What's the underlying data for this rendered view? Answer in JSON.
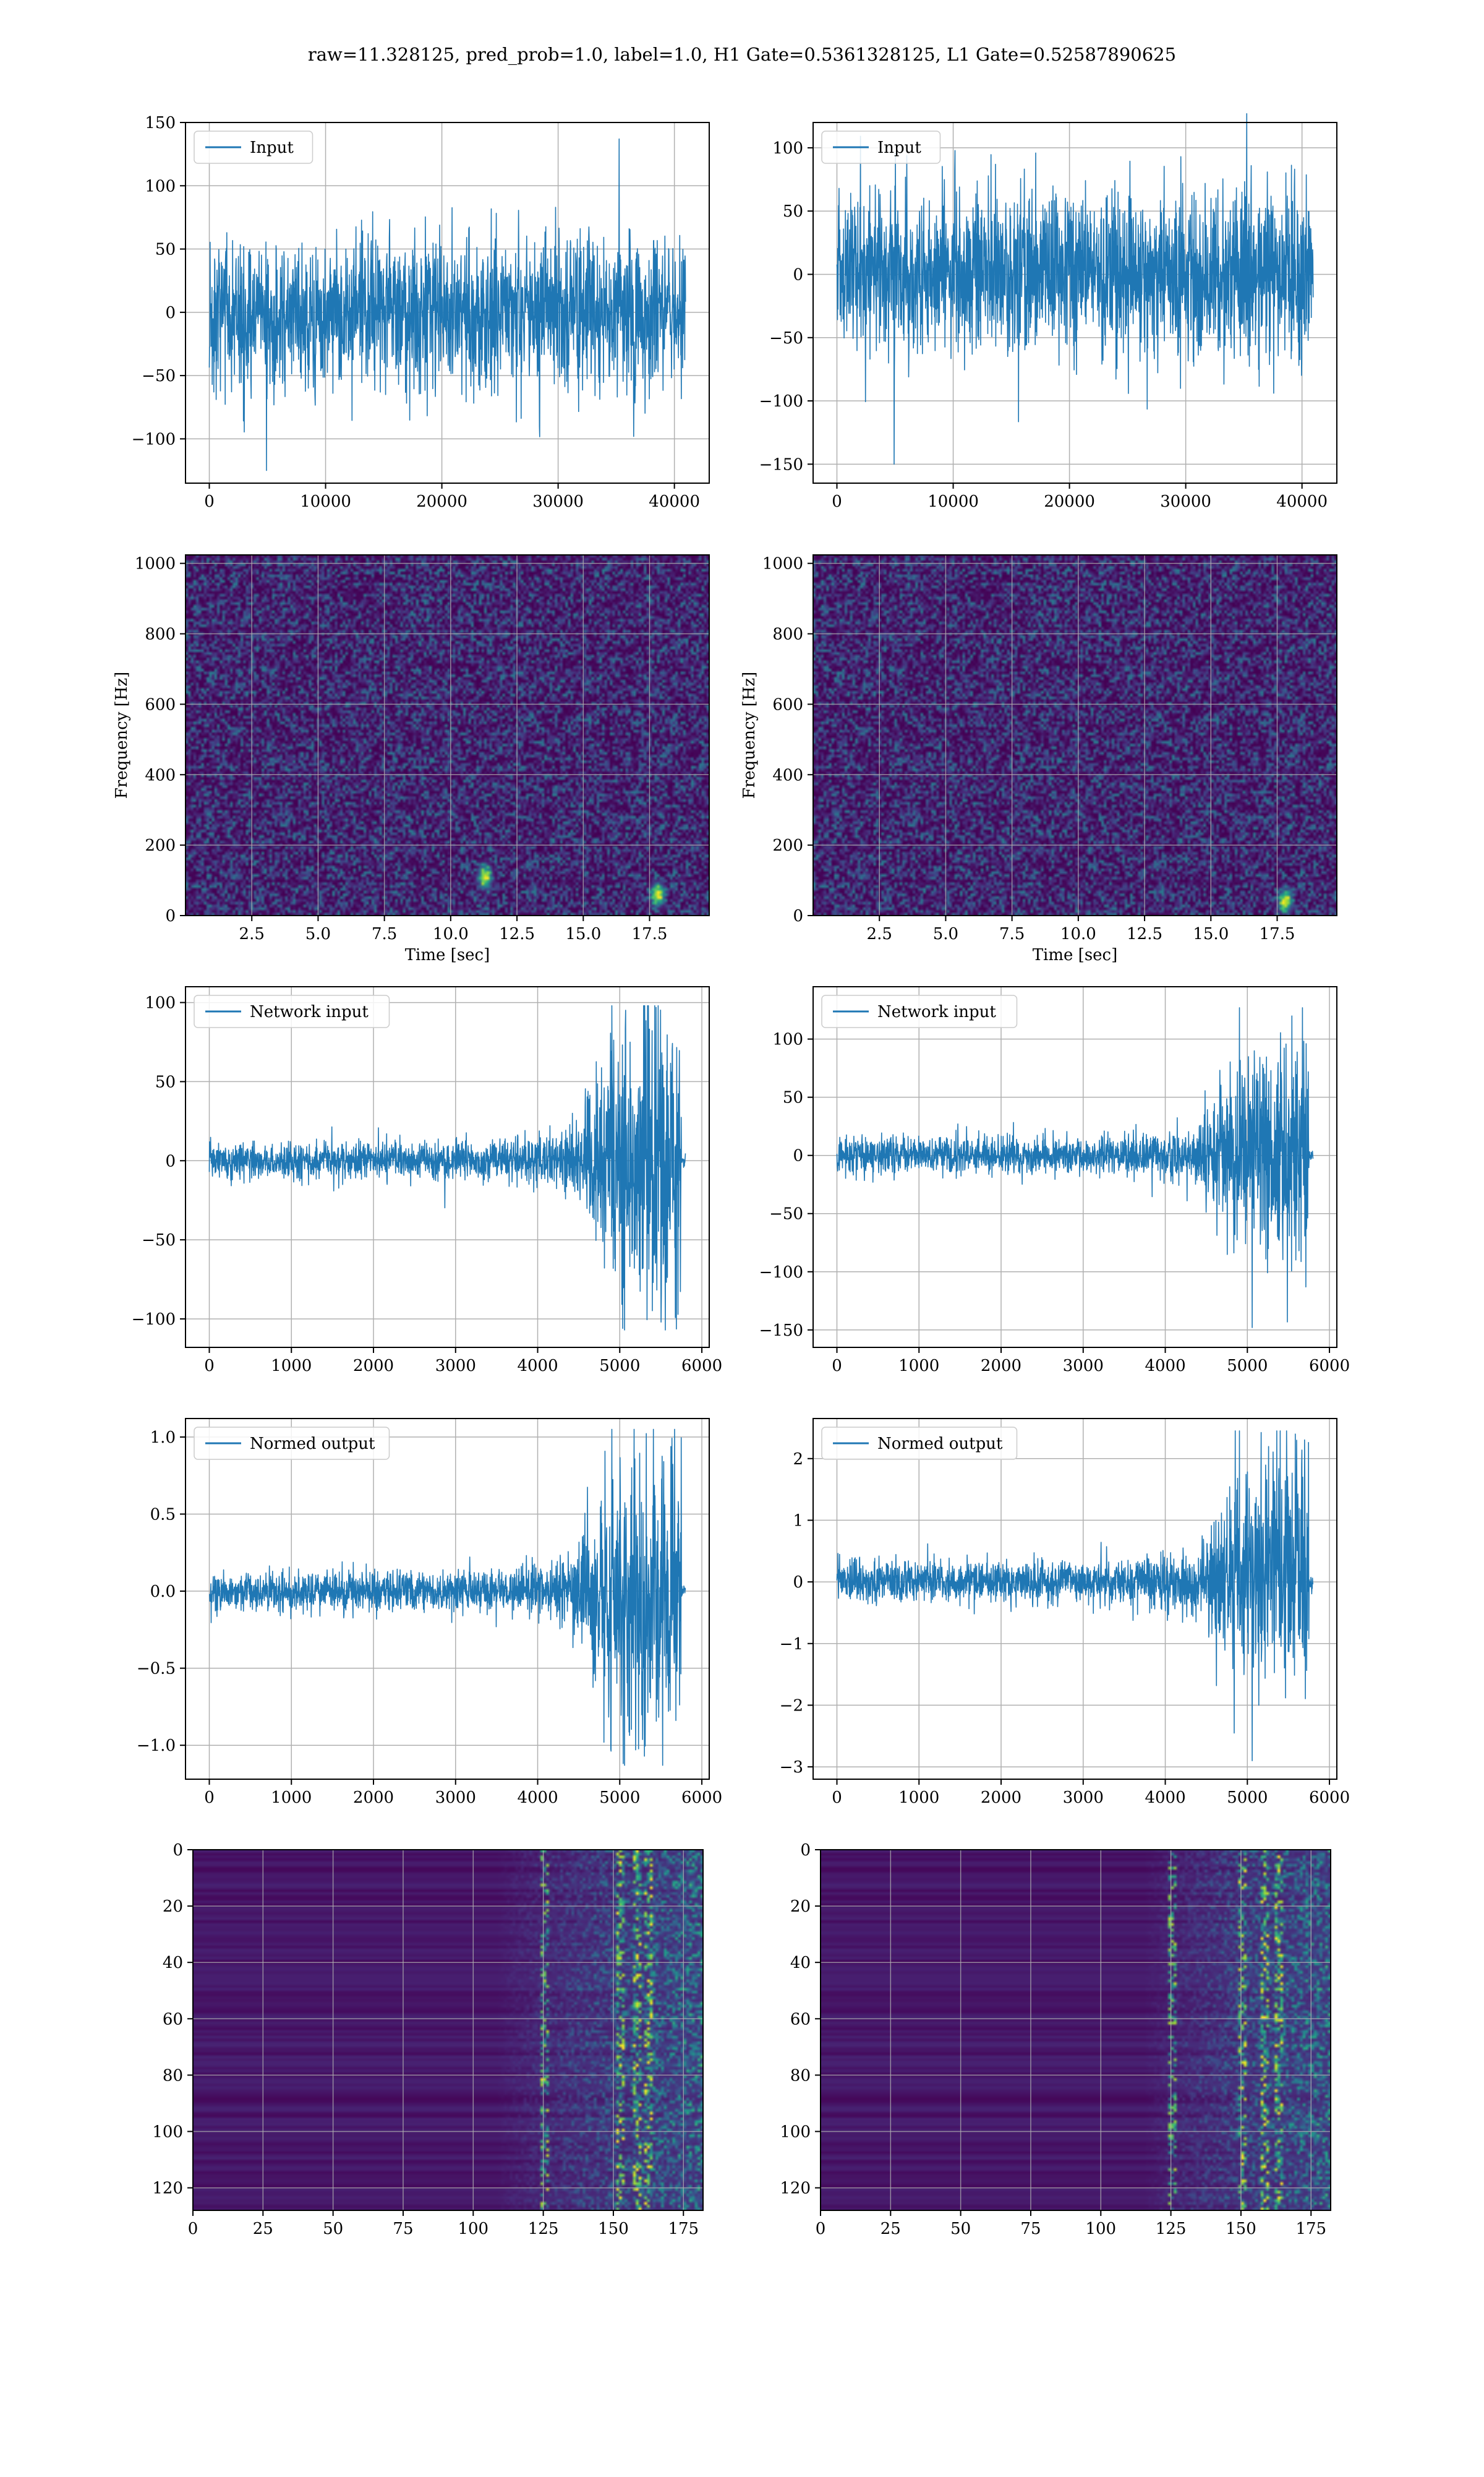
{
  "figure_title": "raw=11.328125, pred_prob=1.0, label=1.0, H1 Gate=0.5361328125, L1 Gate=0.52587890625",
  "colors": {
    "line": "#1f77b4",
    "grid": "#b0b0b0",
    "axes": "#000000",
    "viridis_low": "#440154",
    "viridis_mid": "#21918c",
    "viridis_high": "#fde725"
  },
  "chart_data": [
    {
      "id": "h1-input",
      "type": "line",
      "legend": "Input",
      "legend_loc": "upper-left",
      "grid": true,
      "xlim": [
        -2048,
        42996
      ],
      "ylim": [
        -135,
        150
      ],
      "xticks": [
        0,
        10000,
        20000,
        30000,
        40000
      ],
      "yticks": [
        -100,
        -50,
        0,
        50,
        100,
        150
      ],
      "series": {
        "kind": "noise",
        "n_samples": 40960,
        "x_range": [
          0,
          40960
        ],
        "amplitude_std": 30,
        "peak_min": -125,
        "peak_max": 137
      }
    },
    {
      "id": "l1-input",
      "type": "line",
      "legend": "Input",
      "legend_loc": "upper-left",
      "grid": true,
      "xlim": [
        -2048,
        42996
      ],
      "ylim": [
        -165,
        120
      ],
      "xticks": [
        0,
        10000,
        20000,
        30000,
        40000
      ],
      "yticks": [
        -150,
        -100,
        -50,
        0,
        50,
        100
      ],
      "series": {
        "kind": "noise",
        "n_samples": 40960,
        "x_range": [
          0,
          40960
        ],
        "amplitude_std": 32,
        "peak_min": -150,
        "peak_max": 127
      }
    },
    {
      "id": "h1-spectrogram",
      "type": "heatmap",
      "grid": true,
      "colormap": "viridis",
      "xlabel": "Time [sec]",
      "ylabel": "Frequency [Hz]",
      "xlim": [
        0,
        19.75
      ],
      "ylim": [
        0,
        1024
      ],
      "xticks": [
        2.5,
        5.0,
        7.5,
        10.0,
        12.5,
        15.0,
        17.5
      ],
      "xtick_labels": [
        "2.5",
        "5.0",
        "7.5",
        "10.0",
        "12.5",
        "15.0",
        "17.5"
      ],
      "yticks": [
        0,
        200,
        400,
        600,
        800,
        1000
      ],
      "bright_spots": [
        [
          11.3,
          110
        ],
        [
          17.8,
          60
        ]
      ]
    },
    {
      "id": "l1-spectrogram",
      "type": "heatmap",
      "grid": true,
      "colormap": "viridis",
      "xlabel": "Time [sec]",
      "ylabel": "Frequency [Hz]",
      "xlim": [
        0,
        19.75
      ],
      "ylim": [
        0,
        1024
      ],
      "xticks": [
        2.5,
        5.0,
        7.5,
        10.0,
        12.5,
        15.0,
        17.5
      ],
      "xtick_labels": [
        "2.5",
        "5.0",
        "7.5",
        "10.0",
        "12.5",
        "15.0",
        "17.5"
      ],
      "yticks": [
        0,
        200,
        400,
        600,
        800,
        1000
      ],
      "bright_spots": [
        [
          17.8,
          40
        ]
      ]
    },
    {
      "id": "h1-network-input",
      "type": "line",
      "legend": "Network input",
      "legend_loc": "upper-left",
      "grid": true,
      "xlim": [
        -290,
        6090
      ],
      "ylim": [
        -118,
        110
      ],
      "xticks": [
        0,
        1000,
        2000,
        3000,
        4000,
        5000,
        6000
      ],
      "yticks": [
        -100,
        -50,
        0,
        50,
        100
      ],
      "series": {
        "kind": "chirp",
        "n_samples": 5800,
        "x_range": [
          0,
          5800
        ],
        "signal_end": 5750,
        "base_std": 6,
        "merger_std": 40,
        "onset": 4400,
        "peak_min": -107,
        "peak_max": 98
      }
    },
    {
      "id": "l1-network-input",
      "type": "line",
      "legend": "Network input",
      "legend_loc": "upper-left",
      "grid": true,
      "xlim": [
        -290,
        6090
      ],
      "ylim": [
        -165,
        145
      ],
      "xticks": [
        0,
        1000,
        2000,
        3000,
        4000,
        5000,
        6000
      ],
      "yticks": [
        -150,
        -100,
        -50,
        0,
        50,
        100
      ],
      "series": {
        "kind": "chirp",
        "n_samples": 5800,
        "x_range": [
          0,
          5800
        ],
        "signal_end": 5750,
        "base_std": 8,
        "merger_std": 38,
        "onset": 4400,
        "peak_min": -148,
        "peak_max": 127
      }
    },
    {
      "id": "h1-normed-output",
      "type": "line",
      "legend": "Normed output",
      "legend_loc": "upper-left",
      "grid": true,
      "xlim": [
        -290,
        6090
      ],
      "ylim": [
        -1.22,
        1.12
      ],
      "xticks": [
        0,
        1000,
        2000,
        3000,
        4000,
        5000,
        6000
      ],
      "yticks": [
        -1.0,
        -0.5,
        0.0,
        0.5,
        1.0
      ],
      "ytick_labels": [
        "−1.0",
        "−0.5",
        "0.0",
        "0.5",
        "1.0"
      ],
      "series": {
        "kind": "chirp",
        "n_samples": 5800,
        "x_range": [
          0,
          5800
        ],
        "signal_end": 5750,
        "base_std": 0.065,
        "merger_std": 0.42,
        "onset": 4400,
        "peak_min": -1.13,
        "peak_max": 1.05
      }
    },
    {
      "id": "l1-normed-output",
      "type": "line",
      "legend": "Normed output",
      "legend_loc": "upper-left",
      "grid": true,
      "xlim": [
        -290,
        6090
      ],
      "ylim": [
        -3.2,
        2.65
      ],
      "xticks": [
        0,
        1000,
        2000,
        3000,
        4000,
        5000,
        6000
      ],
      "yticks": [
        -3,
        -2,
        -1,
        0,
        1,
        2
      ],
      "ytick_labels": [
        "−3",
        "−2",
        "−1",
        "0",
        "1",
        "2"
      ],
      "series": {
        "kind": "chirp",
        "n_samples": 5800,
        "x_range": [
          0,
          5800
        ],
        "signal_end": 5750,
        "base_std": 0.17,
        "merger_std": 0.75,
        "onset": 4400,
        "peak_min": -2.9,
        "peak_max": 2.45
      }
    },
    {
      "id": "h1-features",
      "type": "heatmap",
      "grid": true,
      "colormap": "viridis",
      "xlim": [
        0,
        182
      ],
      "ylim_inverted": [
        0,
        128
      ],
      "xticks": [
        0,
        25,
        50,
        75,
        100,
        125,
        150,
        175
      ],
      "yticks": [
        0,
        20,
        40,
        60,
        80,
        100,
        120
      ],
      "activity_onset": 108,
      "active_columns": [
        125,
        152,
        158,
        162
      ]
    },
    {
      "id": "l1-features",
      "type": "heatmap",
      "grid": true,
      "colormap": "viridis",
      "xlim": [
        0,
        182
      ],
      "ylim_inverted": [
        0,
        128
      ],
      "xticks": [
        0,
        25,
        50,
        75,
        100,
        125,
        150,
        175
      ],
      "yticks": [
        0,
        20,
        40,
        60,
        80,
        100,
        120
      ],
      "activity_onset": 115,
      "active_columns": [
        125,
        150,
        158,
        163
      ]
    }
  ]
}
